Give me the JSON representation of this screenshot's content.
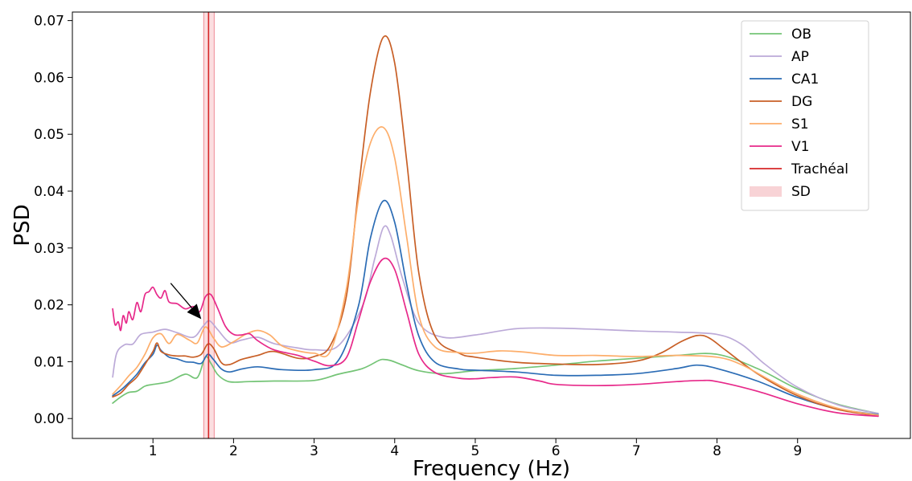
{
  "chart_data": {
    "type": "line",
    "xlabel": "Frequency (Hz)",
    "ylabel": "PSD",
    "xlim": [
      0.0,
      10.4
    ],
    "ylim": [
      -0.0035,
      0.0715
    ],
    "x_ticks": [
      1,
      2,
      3,
      4,
      5,
      6,
      7,
      8,
      9
    ],
    "x_tick_labels": [
      "1",
      "2",
      "3",
      "4",
      "5",
      "6",
      "7",
      "8",
      "9"
    ],
    "y_ticks": [
      0.0,
      0.01,
      0.02,
      0.03,
      0.04,
      0.05,
      0.06,
      0.07
    ],
    "y_tick_labels": [
      "0.00",
      "0.01",
      "0.02",
      "0.03",
      "0.04",
      "0.05",
      "0.06",
      "0.07"
    ],
    "grid": false,
    "legend_position": "top-right",
    "series": [
      {
        "name": "OB",
        "color": "#74c476",
        "x": [
          0.5,
          0.6,
          0.7,
          0.8,
          0.9,
          1.0,
          1.2,
          1.4,
          1.55,
          1.65,
          1.72,
          1.8,
          1.9,
          2.0,
          2.2,
          2.5,
          3.0,
          3.3,
          3.6,
          3.8,
          3.86,
          3.95,
          4.1,
          4.3,
          4.6,
          5.0,
          5.5,
          6.0,
          6.5,
          7.0,
          7.5,
          8.0,
          8.5,
          9.0,
          9.5,
          10.0
        ],
        "y": [
          0.0027,
          0.0038,
          0.0046,
          0.0048,
          0.0057,
          0.006,
          0.0065,
          0.0078,
          0.0072,
          0.0108,
          0.0097,
          0.0078,
          0.0067,
          0.0064,
          0.0065,
          0.0066,
          0.0067,
          0.0078,
          0.0088,
          0.0102,
          0.0104,
          0.0102,
          0.0094,
          0.0084,
          0.0079,
          0.0084,
          0.0088,
          0.0094,
          0.0101,
          0.0106,
          0.0111,
          0.0113,
          0.0088,
          0.0052,
          0.0025,
          0.0009
        ]
      },
      {
        "name": "AP",
        "color": "#bcaad8",
        "x": [
          0.5,
          0.55,
          0.65,
          0.75,
          0.85,
          1.0,
          1.15,
          1.3,
          1.5,
          1.62,
          1.7,
          1.8,
          1.95,
          2.1,
          2.3,
          2.5,
          2.8,
          3.0,
          3.3,
          3.6,
          3.75,
          3.86,
          3.95,
          4.1,
          4.3,
          4.6,
          5.0,
          5.5,
          6.0,
          6.5,
          7.0,
          7.5,
          8.0,
          8.3,
          8.6,
          9.0,
          9.5,
          10.0
        ],
        "y": [
          0.0073,
          0.0115,
          0.013,
          0.0131,
          0.0148,
          0.0152,
          0.0157,
          0.0151,
          0.0143,
          0.0162,
          0.0172,
          0.0157,
          0.0134,
          0.0138,
          0.0143,
          0.0132,
          0.0124,
          0.0121,
          0.0128,
          0.0198,
          0.028,
          0.0336,
          0.0322,
          0.0245,
          0.0168,
          0.0143,
          0.0147,
          0.0158,
          0.0159,
          0.0157,
          0.0154,
          0.0152,
          0.0148,
          0.0131,
          0.0095,
          0.0055,
          0.0024,
          0.0009
        ]
      },
      {
        "name": "CA1",
        "color": "#2b6cb5",
        "x": [
          0.5,
          0.6,
          0.7,
          0.8,
          0.9,
          1.0,
          1.05,
          1.1,
          1.2,
          1.3,
          1.4,
          1.5,
          1.6,
          1.68,
          1.75,
          1.85,
          1.95,
          2.1,
          2.3,
          2.6,
          3.0,
          3.3,
          3.55,
          3.7,
          3.86,
          4.0,
          4.15,
          4.3,
          4.5,
          4.8,
          5.0,
          5.5,
          6.0,
          6.5,
          7.0,
          7.5,
          7.75,
          8.0,
          8.5,
          9.0,
          9.5,
          10.0
        ],
        "y": [
          0.004,
          0.005,
          0.0063,
          0.0078,
          0.0098,
          0.0113,
          0.0129,
          0.012,
          0.0108,
          0.0105,
          0.01,
          0.0099,
          0.0097,
          0.0113,
          0.0104,
          0.0087,
          0.0082,
          0.0087,
          0.0091,
          0.0086,
          0.0086,
          0.0102,
          0.0198,
          0.0318,
          0.0383,
          0.0345,
          0.0235,
          0.0145,
          0.0099,
          0.0087,
          0.0085,
          0.0082,
          0.0076,
          0.0076,
          0.0079,
          0.0088,
          0.0094,
          0.0088,
          0.0066,
          0.0037,
          0.0017,
          0.0007
        ]
      },
      {
        "name": "DG",
        "color": "#c85f26",
        "x": [
          0.5,
          0.6,
          0.7,
          0.8,
          0.9,
          1.0,
          1.05,
          1.1,
          1.2,
          1.3,
          1.4,
          1.5,
          1.6,
          1.68,
          1.75,
          1.85,
          1.95,
          2.1,
          2.3,
          2.5,
          2.8,
          3.0,
          3.2,
          3.4,
          3.55,
          3.7,
          3.86,
          4.0,
          4.15,
          4.3,
          4.5,
          4.8,
          5.0,
          5.5,
          6.0,
          6.5,
          7.0,
          7.3,
          7.55,
          7.75,
          7.9,
          8.1,
          8.5,
          9.0,
          9.5,
          10.0
        ],
        "y": [
          0.0038,
          0.0045,
          0.006,
          0.0073,
          0.0095,
          0.0118,
          0.0133,
          0.0118,
          0.0112,
          0.011,
          0.011,
          0.0108,
          0.0113,
          0.0131,
          0.0124,
          0.0098,
          0.0095,
          0.0104,
          0.0111,
          0.0118,
          0.0106,
          0.0109,
          0.0128,
          0.0215,
          0.0402,
          0.0575,
          0.0671,
          0.0625,
          0.0452,
          0.0256,
          0.0145,
          0.0115,
          0.0108,
          0.0099,
          0.0096,
          0.0095,
          0.0101,
          0.0115,
          0.0135,
          0.0146,
          0.0142,
          0.0121,
          0.0079,
          0.004,
          0.0016,
          0.0005
        ]
      },
      {
        "name": "S1",
        "color": "#fdae6b",
        "x": [
          0.5,
          0.6,
          0.7,
          0.8,
          0.9,
          1.0,
          1.1,
          1.2,
          1.3,
          1.45,
          1.55,
          1.65,
          1.75,
          1.85,
          2.0,
          2.15,
          2.3,
          2.45,
          2.6,
          2.8,
          3.0,
          3.2,
          3.4,
          3.55,
          3.7,
          3.86,
          4.0,
          4.15,
          4.3,
          4.5,
          4.8,
          5.0,
          5.3,
          5.6,
          6.0,
          6.5,
          7.0,
          7.5,
          8.0,
          8.3,
          8.6,
          9.0,
          9.5,
          10.0
        ],
        "y": [
          0.0043,
          0.0058,
          0.0075,
          0.009,
          0.0113,
          0.0142,
          0.0149,
          0.0132,
          0.0148,
          0.0138,
          0.0133,
          0.0161,
          0.0142,
          0.0126,
          0.0135,
          0.0148,
          0.0155,
          0.0147,
          0.0128,
          0.0119,
          0.0115,
          0.0118,
          0.0228,
          0.0386,
          0.0485,
          0.0512,
          0.0458,
          0.0318,
          0.0181,
          0.0126,
          0.0116,
          0.0115,
          0.0119,
          0.0117,
          0.0111,
          0.0111,
          0.0109,
          0.0111,
          0.0108,
          0.0095,
          0.0072,
          0.0043,
          0.0018,
          0.0006
        ]
      },
      {
        "name": "V1",
        "color": "#e7298a",
        "x": [
          0.5,
          0.53,
          0.57,
          0.6,
          0.63,
          0.67,
          0.7,
          0.75,
          0.8,
          0.85,
          0.9,
          0.95,
          1.0,
          1.05,
          1.1,
          1.15,
          1.2,
          1.3,
          1.4,
          1.5,
          1.58,
          1.65,
          1.72,
          1.8,
          1.9,
          2.0,
          2.1,
          2.2,
          2.3,
          2.5,
          2.8,
          3.0,
          3.2,
          3.4,
          3.55,
          3.7,
          3.86,
          4.0,
          4.15,
          4.3,
          4.5,
          4.8,
          5.0,
          5.2,
          5.5,
          5.8,
          6.0,
          6.5,
          7.0,
          7.5,
          7.8,
          8.0,
          8.5,
          9.0,
          9.5,
          10.0
        ],
        "y": [
          0.0193,
          0.0165,
          0.017,
          0.0155,
          0.0181,
          0.0168,
          0.0188,
          0.0174,
          0.0204,
          0.0188,
          0.0218,
          0.0223,
          0.0231,
          0.0218,
          0.0212,
          0.0225,
          0.0205,
          0.0202,
          0.0193,
          0.0197,
          0.0188,
          0.0214,
          0.0218,
          0.0195,
          0.0162,
          0.0148,
          0.0147,
          0.0149,
          0.0137,
          0.0121,
          0.0111,
          0.0101,
          0.0093,
          0.0107,
          0.0172,
          0.0241,
          0.0281,
          0.0262,
          0.0187,
          0.0113,
          0.0081,
          0.0071,
          0.007,
          0.0072,
          0.0073,
          0.0066,
          0.006,
          0.0058,
          0.006,
          0.0065,
          0.0067,
          0.0065,
          0.0048,
          0.0026,
          0.001,
          0.0004
        ]
      }
    ],
    "vertical_line": {
      "name": "Trachéal",
      "x": 1.69,
      "color": "#d62728"
    },
    "band": {
      "name": "SD",
      "x0": 1.63,
      "x1": 1.76,
      "color": "#f8c8cc"
    },
    "annotations": [
      {
        "type": "arrow",
        "from": {
          "x": 1.22,
          "y": 0.0238
        },
        "to": {
          "x": 1.6,
          "y": 0.0175
        }
      }
    ],
    "legend": [
      {
        "label": "OB",
        "color": "#74c476",
        "kind": "line"
      },
      {
        "label": "AP",
        "color": "#bcaad8",
        "kind": "line"
      },
      {
        "label": "CA1",
        "color": "#2b6cb5",
        "kind": "line"
      },
      {
        "label": "DG",
        "color": "#c85f26",
        "kind": "line"
      },
      {
        "label": "S1",
        "color": "#fdae6b",
        "kind": "line"
      },
      {
        "label": "V1",
        "color": "#e7298a",
        "kind": "line"
      },
      {
        "label": "Trachéal",
        "color": "#d62728",
        "kind": "line"
      },
      {
        "label": "SD",
        "color": "#f8d3d6",
        "kind": "patch"
      }
    ]
  }
}
